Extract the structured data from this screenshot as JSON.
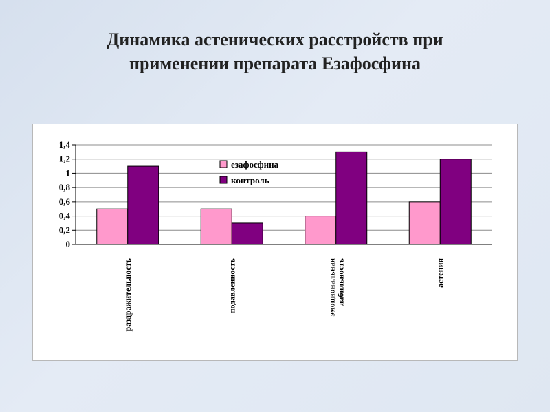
{
  "slide": {
    "title_line1": "Динамика астенических расстройств при",
    "title_line2": "применении препарата Езафосфина"
  },
  "chart_data": {
    "type": "bar",
    "title": "",
    "xlabel": "",
    "ylabel": "",
    "categories": [
      [
        "раздражительность"
      ],
      [
        "подавленность"
      ],
      [
        "эмоциональная",
        "лабильность"
      ],
      [
        "астения"
      ]
    ],
    "series": [
      {
        "name": "езафосфина",
        "color": "#ff99cc",
        "values": [
          0.5,
          0.5,
          0.4,
          0.6
        ]
      },
      {
        "name": "контроль",
        "color": "#800080",
        "values": [
          1.1,
          0.3,
          1.3,
          1.2
        ]
      }
    ],
    "ylim": [
      0,
      1.4
    ],
    "yticks": [
      "0",
      "0,2",
      "0,4",
      "0,6",
      "0,8",
      "1",
      "1,2",
      "1,4"
    ],
    "grid": true,
    "legend_position": "top-middle"
  }
}
